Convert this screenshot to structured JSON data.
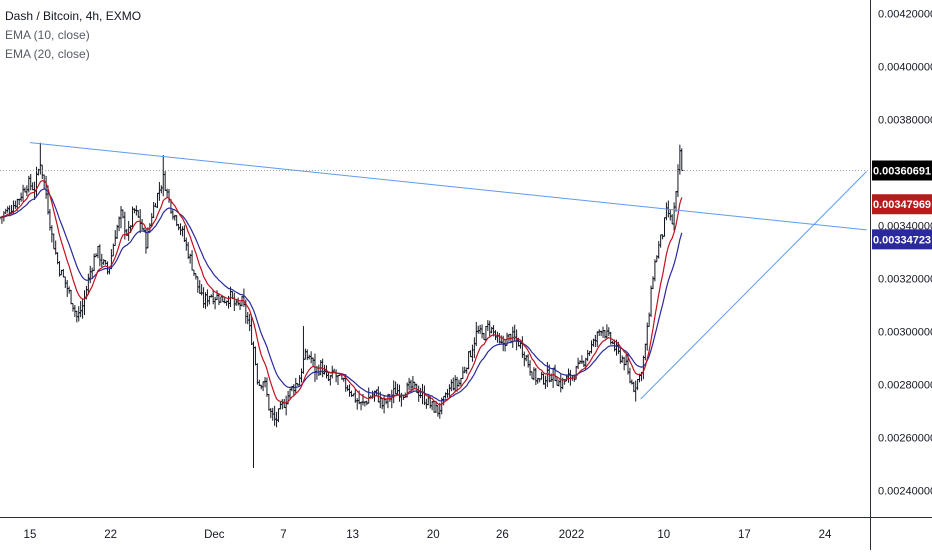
{
  "legend": {
    "title": "Dash / Bitcoin, 4h, EXMO",
    "ema10": "EMA (10, close)",
    "ema20": "EMA (20, close)"
  },
  "colors": {
    "background": "#ffffff",
    "candle": "#131722",
    "ema10": "#c1121f",
    "ema20": "#2a2a9c",
    "trendline": "#5b9cf0",
    "price_line": "#8a8a8a",
    "last_price_badge": "#000000",
    "ema10_badge": "#b71c1c",
    "ema20_badge": "#2a2a9c"
  },
  "chart_data": {
    "type": "candlestick",
    "title": "Dash / Bitcoin, 4h, EXMO",
    "ylim": [
      0.0023,
      0.00425
    ],
    "y_ticks": [
      "0.00420000",
      "0.00400000",
      "0.00380000",
      "0.00360000",
      "0.00340000",
      "0.00320000",
      "0.00300000",
      "0.00280000",
      "0.00260000",
      "0.00240000"
    ],
    "y_tick_values": [
      0.0042,
      0.004,
      0.0038,
      0.0036,
      0.0034,
      0.0032,
      0.003,
      0.0028,
      0.0026,
      0.0024
    ],
    "x_ticks": [
      "15",
      "22",
      "Dec",
      "7",
      "13",
      "20",
      "26",
      "2022",
      "10",
      "17",
      "24"
    ],
    "x_tick_days": [
      0,
      7,
      16,
      22,
      28,
      35,
      41,
      47,
      55,
      62,
      69
    ],
    "xlim_days": [
      -2.6,
      72.9
    ],
    "grid": false,
    "last_price": {
      "label": "0.00360691",
      "value": 0.00360691
    },
    "ema10_last": {
      "label": "0.00347969",
      "value": 0.00347969
    },
    "ema20_last": {
      "label": "0.00334723",
      "value": 0.00334723
    },
    "close_path": [
      [
        -2.6,
        0.00343
      ],
      [
        -1.8,
        0.00346
      ],
      [
        -1.0,
        0.0035
      ],
      [
        -0.2,
        0.00356
      ],
      [
        0.4,
        0.00354
      ],
      [
        0.9,
        0.00364
      ],
      [
        1.4,
        0.00352
      ],
      [
        1.9,
        0.00336
      ],
      [
        2.5,
        0.00324
      ],
      [
        3.1,
        0.00318
      ],
      [
        3.6,
        0.00312
      ],
      [
        4.1,
        0.00305
      ],
      [
        4.6,
        0.0031
      ],
      [
        5.2,
        0.00322
      ],
      [
        5.8,
        0.00331
      ],
      [
        6.3,
        0.00326
      ],
      [
        6.8,
        0.00322
      ],
      [
        7.4,
        0.00337
      ],
      [
        7.9,
        0.00344
      ],
      [
        8.5,
        0.00336
      ],
      [
        9.0,
        0.00346
      ],
      [
        9.6,
        0.00341
      ],
      [
        10.1,
        0.00333
      ],
      [
        10.6,
        0.00345
      ],
      [
        11.1,
        0.00352
      ],
      [
        11.6,
        0.00358
      ],
      [
        12.0,
        0.0035
      ],
      [
        12.5,
        0.00344
      ],
      [
        13.0,
        0.0034
      ],
      [
        13.5,
        0.00333
      ],
      [
        14.0,
        0.00326
      ],
      [
        14.5,
        0.00318
      ],
      [
        15.0,
        0.00311
      ],
      [
        15.6,
        0.00314
      ],
      [
        16.2,
        0.00313
      ],
      [
        16.8,
        0.00312
      ],
      [
        17.4,
        0.00313
      ],
      [
        17.9,
        0.00309
      ],
      [
        18.4,
        0.00311
      ],
      [
        18.9,
        0.00304
      ],
      [
        19.4,
        0.00294
      ],
      [
        19.8,
        0.0028
      ],
      [
        20.3,
        0.00282
      ],
      [
        20.8,
        0.0027
      ],
      [
        21.3,
        0.00266
      ],
      [
        21.8,
        0.00271
      ],
      [
        22.3,
        0.00275
      ],
      [
        22.8,
        0.00279
      ],
      [
        23.3,
        0.00281
      ],
      [
        23.8,
        0.0029
      ],
      [
        24.3,
        0.00291
      ],
      [
        24.8,
        0.00285
      ],
      [
        25.3,
        0.00287
      ],
      [
        25.8,
        0.00281
      ],
      [
        26.4,
        0.00284
      ],
      [
        27.0,
        0.00281
      ],
      [
        27.6,
        0.00279
      ],
      [
        28.2,
        0.00275
      ],
      [
        28.8,
        0.00272
      ],
      [
        29.4,
        0.00275
      ],
      [
        30.0,
        0.00277
      ],
      [
        30.6,
        0.00272
      ],
      [
        31.2,
        0.00275
      ],
      [
        31.8,
        0.00278
      ],
      [
        32.4,
        0.00277
      ],
      [
        33.0,
        0.00279
      ],
      [
        33.6,
        0.00278
      ],
      [
        34.2,
        0.00275
      ],
      [
        34.8,
        0.00272
      ],
      [
        35.4,
        0.0027
      ],
      [
        36.0,
        0.00274
      ],
      [
        36.6,
        0.0028
      ],
      [
        37.2,
        0.0028
      ],
      [
        37.8,
        0.00287
      ],
      [
        38.3,
        0.00293
      ],
      [
        38.8,
        0.003
      ],
      [
        39.3,
        0.00298
      ],
      [
        39.8,
        0.00302
      ],
      [
        40.3,
        0.00299
      ],
      [
        40.8,
        0.00294
      ],
      [
        41.3,
        0.00297
      ],
      [
        41.8,
        0.00298
      ],
      [
        42.4,
        0.00296
      ],
      [
        43.0,
        0.00291
      ],
      [
        43.6,
        0.00284
      ],
      [
        44.2,
        0.00281
      ],
      [
        44.8,
        0.00283
      ],
      [
        45.4,
        0.00284
      ],
      [
        46.0,
        0.0028
      ],
      [
        46.6,
        0.00282
      ],
      [
        47.2,
        0.00284
      ],
      [
        47.8,
        0.00287
      ],
      [
        48.4,
        0.00292
      ],
      [
        49.0,
        0.00296
      ],
      [
        49.6,
        0.00302
      ],
      [
        50.1,
        0.00298
      ],
      [
        50.6,
        0.00295
      ],
      [
        51.1,
        0.00291
      ],
      [
        51.6,
        0.00289
      ],
      [
        52.0,
        0.00282
      ],
      [
        52.4,
        0.00279
      ],
      [
        52.9,
        0.00283
      ],
      [
        53.3,
        0.00291
      ],
      [
        53.7,
        0.00305
      ],
      [
        54.1,
        0.00323
      ],
      [
        54.5,
        0.00331
      ],
      [
        54.9,
        0.00337
      ],
      [
        55.3,
        0.00346
      ],
      [
        55.7,
        0.0034
      ],
      [
        56.1,
        0.00352
      ],
      [
        56.4,
        0.00368
      ],
      [
        56.7,
        0.0036
      ]
    ],
    "trendlines": [
      {
        "from": [
          0.0,
          0.003712
        ],
        "to": [
          72.6,
          0.003383
        ]
      },
      {
        "from": [
          53.0,
          0.002745
        ],
        "to": [
          72.6,
          0.003603
        ]
      }
    ]
  }
}
